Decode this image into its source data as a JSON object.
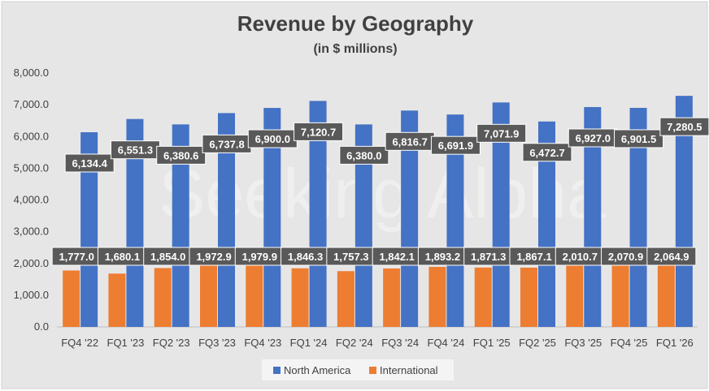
{
  "chart_data": {
    "type": "bar",
    "title": "Revenue by Geography",
    "subtitle": "(in $ millions)",
    "categories": [
      "FQ4 '22",
      "FQ1 '23",
      "FQ2 '23",
      "FQ3 '23",
      "FQ4 '23",
      "FQ1 '24",
      "FQ2 '24",
      "FQ3 '24",
      "FQ4 '24",
      "FQ1 '25",
      "FQ2 '25",
      "FQ3 '25",
      "FQ4 '25",
      "FQ1 '26"
    ],
    "series": [
      {
        "name": "North America",
        "color": "#4472C4",
        "values": [
          6134.4,
          6551.3,
          6380.6,
          6737.8,
          6900.0,
          7120.7,
          6380.0,
          6816.7,
          6691.9,
          7071.9,
          6472.7,
          6927.0,
          6901.5,
          7280.5
        ],
        "labels": [
          "6,134.4",
          "6,551.3",
          "6,380.6",
          "6,737.8",
          "6,900.0",
          "7,120.7",
          "6,380.0",
          "6,816.7",
          "6,691.9",
          "7,071.9",
          "6,472.7",
          "6,927.0",
          "6,901.5",
          "7,280.5"
        ]
      },
      {
        "name": "International",
        "color": "#ED7D31",
        "values": [
          1777.0,
          1680.1,
          1854.0,
          1972.9,
          1979.9,
          1846.3,
          1757.3,
          1842.1,
          1893.2,
          1871.3,
          1867.1,
          2010.7,
          2070.9,
          2064.9
        ],
        "labels": [
          "1,777.0",
          "1,680.1",
          "1,854.0",
          "1,972.9",
          "1,979.9",
          "1,846.3",
          "1,757.3",
          "1,842.1",
          "1,893.2",
          "1,871.3",
          "1,867.1",
          "2,010.7",
          "2,070.9",
          "2,064.9"
        ]
      }
    ],
    "ylim": [
      0,
      8000
    ],
    "yticks": [
      0,
      1000,
      2000,
      3000,
      4000,
      5000,
      6000,
      7000,
      8000
    ],
    "ytick_labels": [
      "0.0",
      "1,000.0",
      "2,000.0",
      "3,000.0",
      "4,000.0",
      "5,000.0",
      "6,000.0",
      "7,000.0",
      "8,000.0"
    ],
    "legend_position": "bottom",
    "watermark": "Seeking Alpha",
    "background": "#E7E6E6",
    "label_box_color": "#595959",
    "label_text_color": "#FFFFFF",
    "grid": false
  }
}
